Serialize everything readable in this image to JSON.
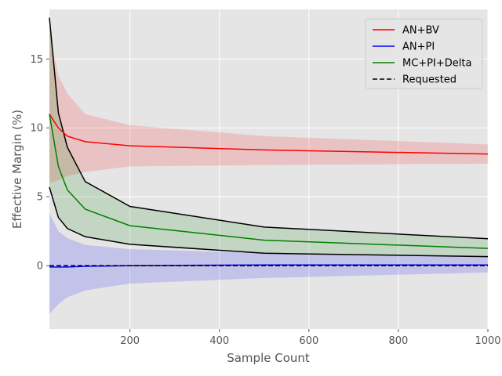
{
  "chart_data": {
    "type": "line",
    "xlabel": "Sample Count",
    "ylabel": "Effective Margin (%)",
    "xlim": [
      20,
      1000
    ],
    "ylim": [
      -4.6,
      18.6
    ],
    "xticks": [
      200,
      400,
      600,
      800,
      1000
    ],
    "yticks": [
      0,
      5,
      10,
      15
    ],
    "grid": true,
    "legend_position": "top-right",
    "x": [
      20,
      40,
      60,
      100,
      200,
      500,
      1000
    ],
    "series": [
      {
        "name": "AN+BV",
        "color": "#ff0000",
        "values": [
          11.0,
          10.0,
          9.4,
          9.0,
          8.7,
          8.4,
          8.1
        ],
        "band_lower": [
          6.0,
          6.2,
          6.5,
          6.8,
          7.2,
          7.3,
          7.4
        ],
        "band_upper": [
          17.0,
          13.8,
          12.5,
          11.0,
          10.2,
          9.4,
          8.8
        ],
        "band_color": "#ff0000"
      },
      {
        "name": "AN+PI",
        "color": "#0000ff",
        "values": [
          -0.1,
          -0.1,
          -0.1,
          -0.05,
          0.0,
          0.05,
          0.05
        ],
        "band_lower": [
          -3.5,
          -2.8,
          -2.3,
          -1.8,
          -1.3,
          -0.9,
          -0.5
        ],
        "band_upper": [
          3.8,
          2.5,
          2.0,
          1.5,
          1.2,
          0.9,
          0.7
        ],
        "band_color": "#0000ff"
      },
      {
        "name": "MC+PI+Delta",
        "color": "#008000",
        "values": [
          11.0,
          7.2,
          5.5,
          4.1,
          2.9,
          1.85,
          1.25
        ],
        "band_lower": [
          5.7,
          3.5,
          2.7,
          2.1,
          1.55,
          0.9,
          0.65
        ],
        "band_upper": [
          18.0,
          11.1,
          8.6,
          6.1,
          4.3,
          2.8,
          1.95
        ],
        "band_color": "#008000",
        "band_edge_color": "#000000"
      },
      {
        "name": "Requested",
        "color": "#000000",
        "dashed": true,
        "values": [
          0,
          0,
          0,
          0,
          0,
          0,
          0
        ]
      }
    ]
  }
}
